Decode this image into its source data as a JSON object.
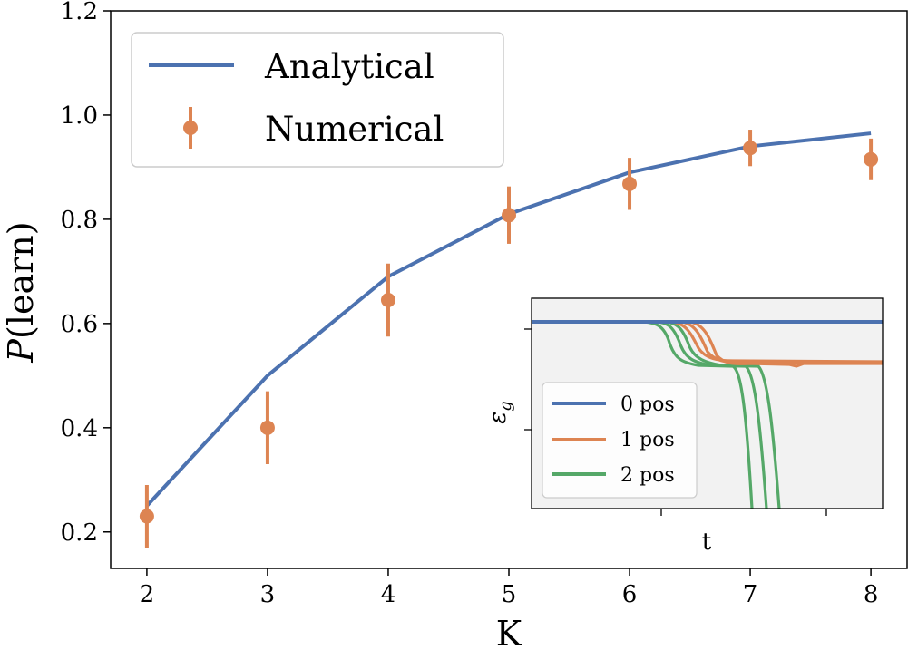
{
  "chart_data": [
    {
      "type": "line",
      "title": "",
      "xlabel": "K",
      "ylabel_italic": "P",
      "ylabel_rest": "(learn)",
      "xlim": [
        1.7,
        8.3
      ],
      "ylim": [
        0.13,
        1.2
      ],
      "xticks": [
        2,
        3,
        4,
        5,
        6,
        7,
        8
      ],
      "xtick_labels": [
        "2",
        "3",
        "4",
        "5",
        "6",
        "7",
        "8"
      ],
      "yticks": [
        0.2,
        0.4,
        0.6,
        0.8,
        1.0,
        1.2
      ],
      "ytick_labels": [
        "0.2",
        "0.4",
        "0.6",
        "0.8",
        "1.0",
        "1.2"
      ],
      "grid": false,
      "legend_position": "top-left",
      "legend": [
        "Analytical",
        "Numerical"
      ],
      "series": [
        {
          "name": "Analytical",
          "kind": "line",
          "color": "#4c72b0",
          "x": [
            2,
            3,
            4,
            5,
            6,
            7,
            8
          ],
          "y": [
            0.25,
            0.5,
            0.69,
            0.81,
            0.89,
            0.94,
            0.965
          ]
        },
        {
          "name": "Numerical",
          "kind": "errorbar",
          "color": "#dd8452",
          "x": [
            2,
            3,
            4,
            5,
            6,
            7,
            8
          ],
          "y": [
            0.23,
            0.4,
            0.645,
            0.808,
            0.868,
            0.937,
            0.915
          ],
          "yerr": [
            0.06,
            0.07,
            0.07,
            0.055,
            0.05,
            0.035,
            0.04
          ]
        }
      ]
    },
    {
      "type": "line",
      "title": "",
      "xlabel": "t",
      "ylabel": "ε",
      "ylabel_sub": "g",
      "legend_position": "lower-left",
      "legend": [
        "0 pos",
        "1 pos",
        "2 pos"
      ],
      "tick_labels": "none",
      "series_colors": {
        "0 pos": "#4c72b0",
        "1 pos": "#dd8452",
        "2 pos": "#55a868"
      }
    }
  ]
}
